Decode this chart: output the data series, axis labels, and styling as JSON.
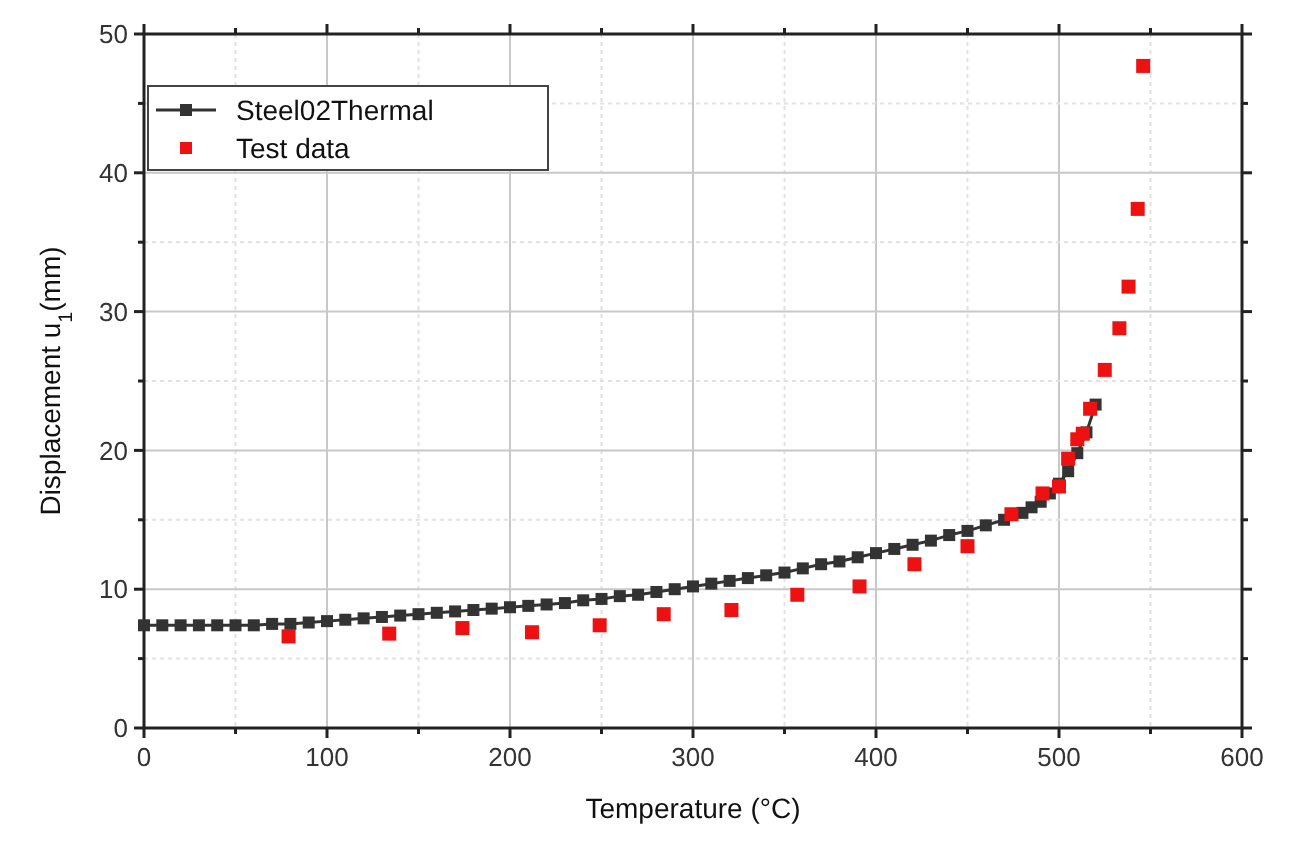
{
  "chart_data": {
    "type": "line",
    "xlabel": "Temperature (°C)",
    "ylabel": "Displacement u$_{1}$(mm)",
    "xlim": [
      0,
      600
    ],
    "ylim": [
      0,
      50
    ],
    "xticks": [
      0,
      {
        "value": 50,
        "label": null
      },
      100,
      {
        "value": 150,
        "label": null
      },
      200,
      {
        "value": 250,
        "label": null
      },
      300,
      {
        "value": 350,
        "label": null
      },
      400,
      {
        "value": 450,
        "label": null
      },
      500,
      {
        "value": 550,
        "label": null
      },
      600
    ],
    "yticks": [
      0,
      {
        "value": 5,
        "label": null
      },
      10,
      {
        "value": 15,
        "label": null
      },
      20,
      {
        "value": 25,
        "label": null
      },
      30,
      {
        "value": 35,
        "label": null
      },
      40,
      {
        "value": 45,
        "label": null
      },
      50
    ],
    "grid": true,
    "legend": "top left",
    "series": [
      {
        "name": "Steel02Thermal",
        "color": "#333333",
        "marker": "square",
        "line_style": "solid",
        "x": [
          0,
          10,
          20,
          30,
          40,
          50,
          60,
          70,
          80,
          90,
          100,
          110,
          120,
          130,
          140,
          150,
          160,
          170,
          180,
          190,
          200,
          210,
          220,
          230,
          240,
          250,
          260,
          270,
          280,
          290,
          300,
          310,
          320,
          330,
          340,
          350,
          360,
          370,
          380,
          390,
          400,
          410,
          420,
          430,
          440,
          450,
          460,
          470,
          480,
          485,
          490,
          495,
          500,
          505,
          510,
          515,
          520
        ],
        "values": [
          7.4,
          7.4,
          7.4,
          7.4,
          7.4,
          7.4,
          7.4,
          7.5,
          7.5,
          7.6,
          7.7,
          7.8,
          7.9,
          8.0,
          8.1,
          8.2,
          8.3,
          8.4,
          8.5,
          8.6,
          8.7,
          8.8,
          8.9,
          9.0,
          9.2,
          9.3,
          9.5,
          9.6,
          9.8,
          10.0,
          10.2,
          10.4,
          10.6,
          10.8,
          11.0,
          11.2,
          11.5,
          11.8,
          12.0,
          12.3,
          12.6,
          12.9,
          13.2,
          13.5,
          13.9,
          14.2,
          14.6,
          15.0,
          15.5,
          15.9,
          16.3,
          16.9,
          17.6,
          18.5,
          19.8,
          21.3,
          23.3
        ]
      },
      {
        "name": "Test data",
        "type": "scatter",
        "color": "#ee1111",
        "marker": "square",
        "x": [
          79,
          134,
          174,
          212,
          249,
          284,
          321,
          357,
          391,
          421,
          450,
          474,
          491,
          500,
          505,
          510,
          513,
          517,
          525,
          533,
          538,
          543,
          546
        ],
        "values": [
          6.6,
          6.8,
          7.2,
          6.9,
          7.4,
          8.2,
          8.5,
          9.6,
          10.2,
          11.8,
          13.1,
          15.4,
          16.9,
          17.4,
          19.4,
          20.8,
          21.2,
          23.0,
          25.8,
          28.8,
          31.8,
          37.4,
          47.7
        ]
      }
    ]
  }
}
